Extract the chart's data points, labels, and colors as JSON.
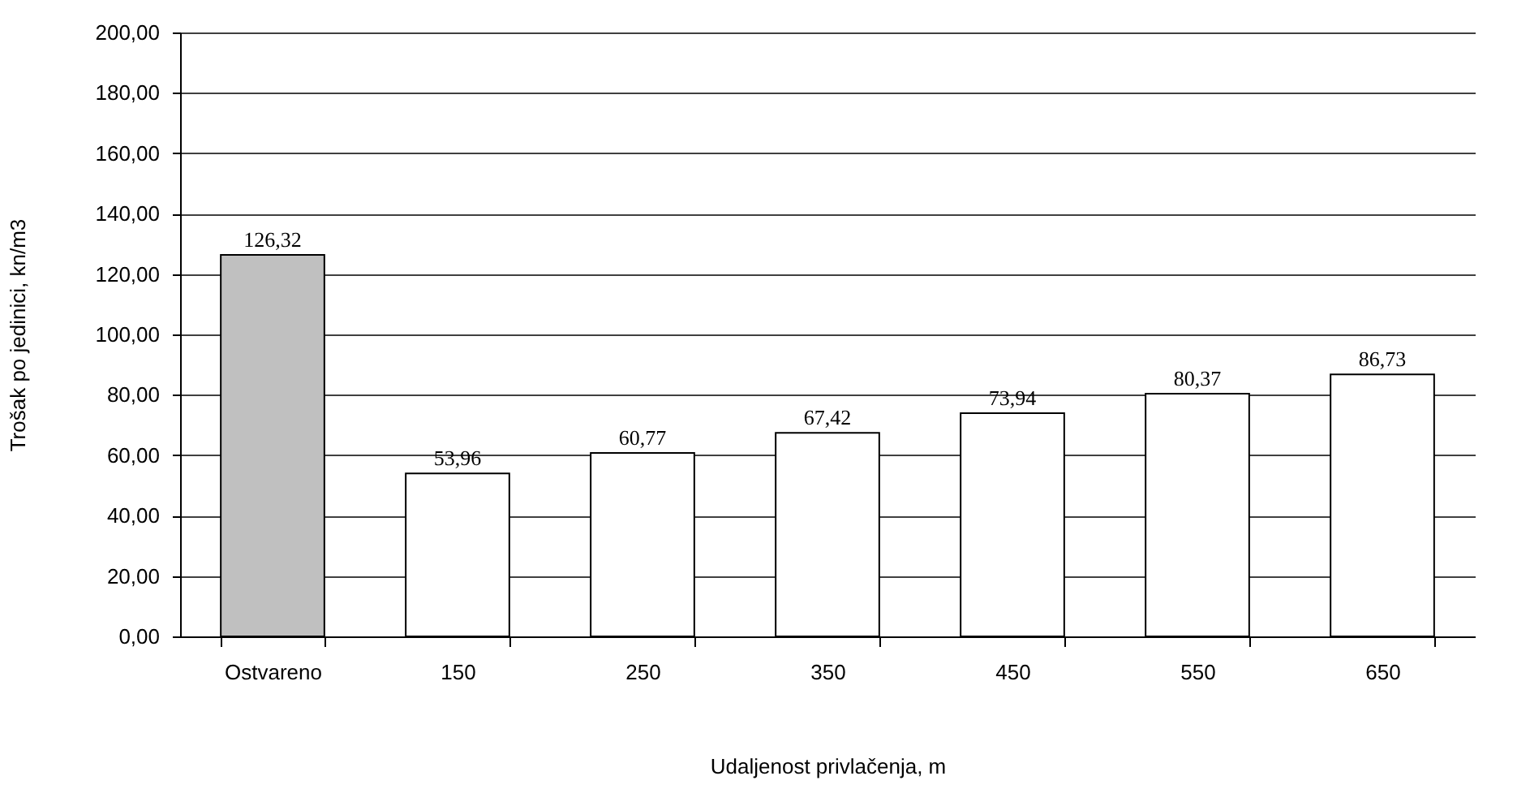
{
  "chart_data": {
    "type": "bar",
    "xlabel": "Udaljenost privlačenja, m",
    "ylabel": "Trošak po jedinici, kn/m3",
    "categories": [
      "Ostvareno",
      "150",
      "250",
      "350",
      "450",
      "550",
      "650"
    ],
    "values": [
      126.32,
      53.96,
      60.77,
      67.42,
      73.94,
      80.37,
      86.73
    ],
    "colors": [
      "#c0c0c0",
      "#ffffff",
      "#ffffff",
      "#ffffff",
      "#ffffff",
      "#ffffff",
      "#ffffff"
    ],
    "value_labels": [
      "126,32",
      "53,96",
      "60,77",
      "67,42",
      "73,94",
      "80,37",
      "86,73"
    ],
    "ylim": [
      0,
      200
    ],
    "yticks": [
      {
        "value": 0,
        "label": "0,00"
      },
      {
        "value": 20,
        "label": "20,00"
      },
      {
        "value": 40,
        "label": "40,00"
      },
      {
        "value": 60,
        "label": "60,00"
      },
      {
        "value": 80,
        "label": "80,00"
      },
      {
        "value": 100,
        "label": "100,00"
      },
      {
        "value": 120,
        "label": "120,00"
      },
      {
        "value": 140,
        "label": "140,00"
      },
      {
        "value": 160,
        "label": "160,00"
      },
      {
        "value": 180,
        "label": "180,00"
      },
      {
        "value": 200,
        "label": "200,00"
      }
    ],
    "grid": "y"
  }
}
